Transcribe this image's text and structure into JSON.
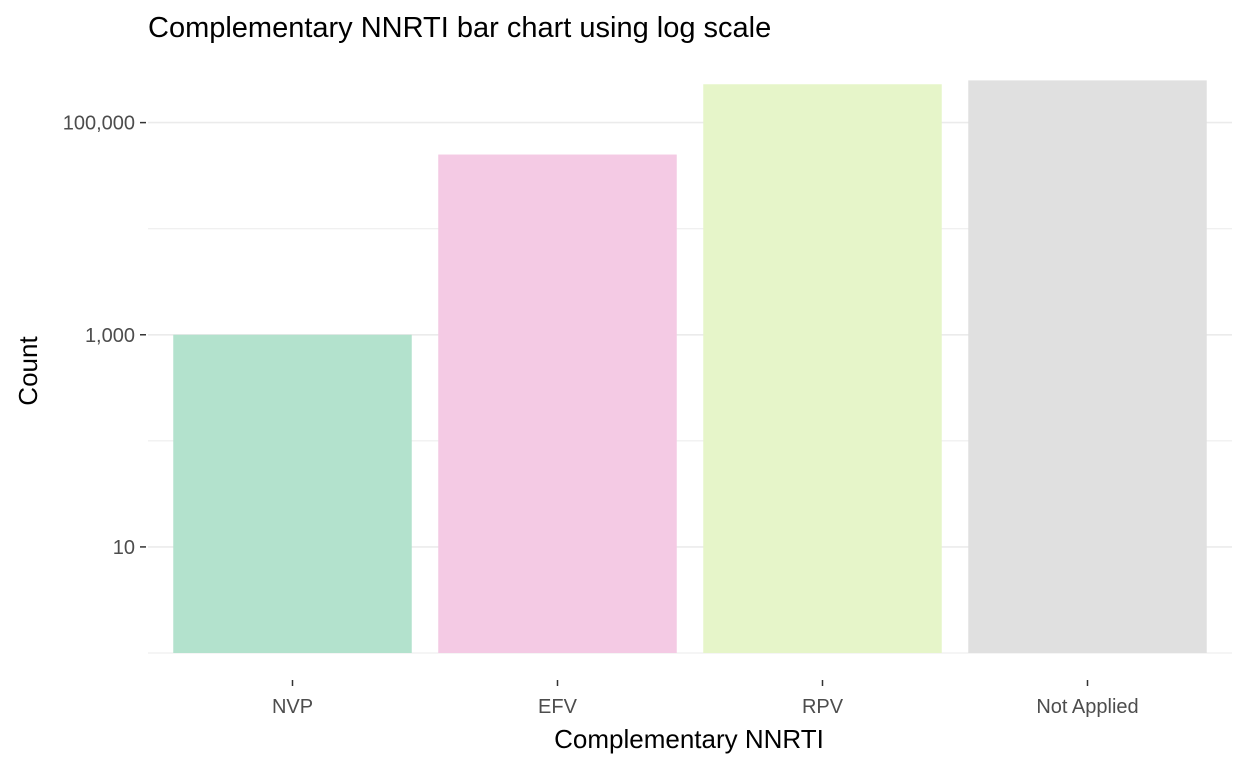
{
  "chart_data": {
    "type": "bar",
    "title": "Complementary NNRTI bar chart using log scale",
    "xlabel": "Complementary NNRTI",
    "ylabel": "Count",
    "yscale": "log10",
    "ylim": [
      1,
      300000
    ],
    "yticks": [
      10,
      1000,
      100000
    ],
    "ytick_labels": [
      "10",
      "1,000",
      "100,000"
    ],
    "grid": true,
    "legend": "none",
    "categories": [
      "NVP",
      "EFV",
      "RPV",
      "Not Applied"
    ],
    "values": [
      1000,
      50000,
      230000,
      250000
    ],
    "colors": [
      "#b3e2cd",
      "#f4cae4",
      "#e6f5c9",
      "#e0e0e0"
    ]
  }
}
